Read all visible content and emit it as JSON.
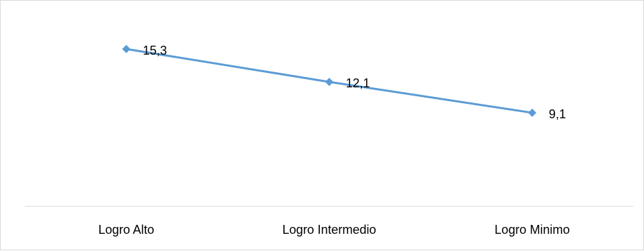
{
  "chart_data": {
    "type": "line",
    "title": "",
    "xlabel": "",
    "ylabel": "",
    "categories": [
      "Logro Alto",
      "Logro Intermedio",
      "Logro Minimo"
    ],
    "series": [
      {
        "values": [
          15.3,
          12.1,
          9.1
        ],
        "labels": [
          "15,3",
          "12,1",
          "9,1"
        ]
      }
    ],
    "ylim": [
      0,
      20
    ],
    "grid": false,
    "legend": "none",
    "marker": "diamond",
    "colors": {
      "line": "#5b9bd5",
      "axis": "#d9d9d9",
      "text": "#000000"
    }
  }
}
